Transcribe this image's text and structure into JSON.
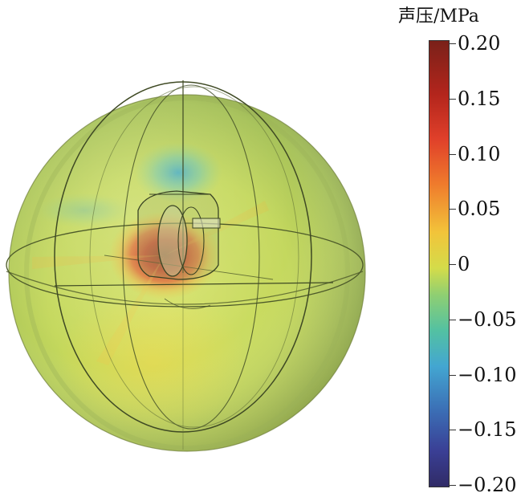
{
  "colorbar": {
    "title": "声压/MPa",
    "min": -0.2,
    "max": 0.2,
    "ticks": [
      "0.20",
      "0.15",
      "0.10",
      "0.05",
      "0",
      "−0.05",
      "−0.10",
      "−0.15",
      "−0.20"
    ]
  }
}
